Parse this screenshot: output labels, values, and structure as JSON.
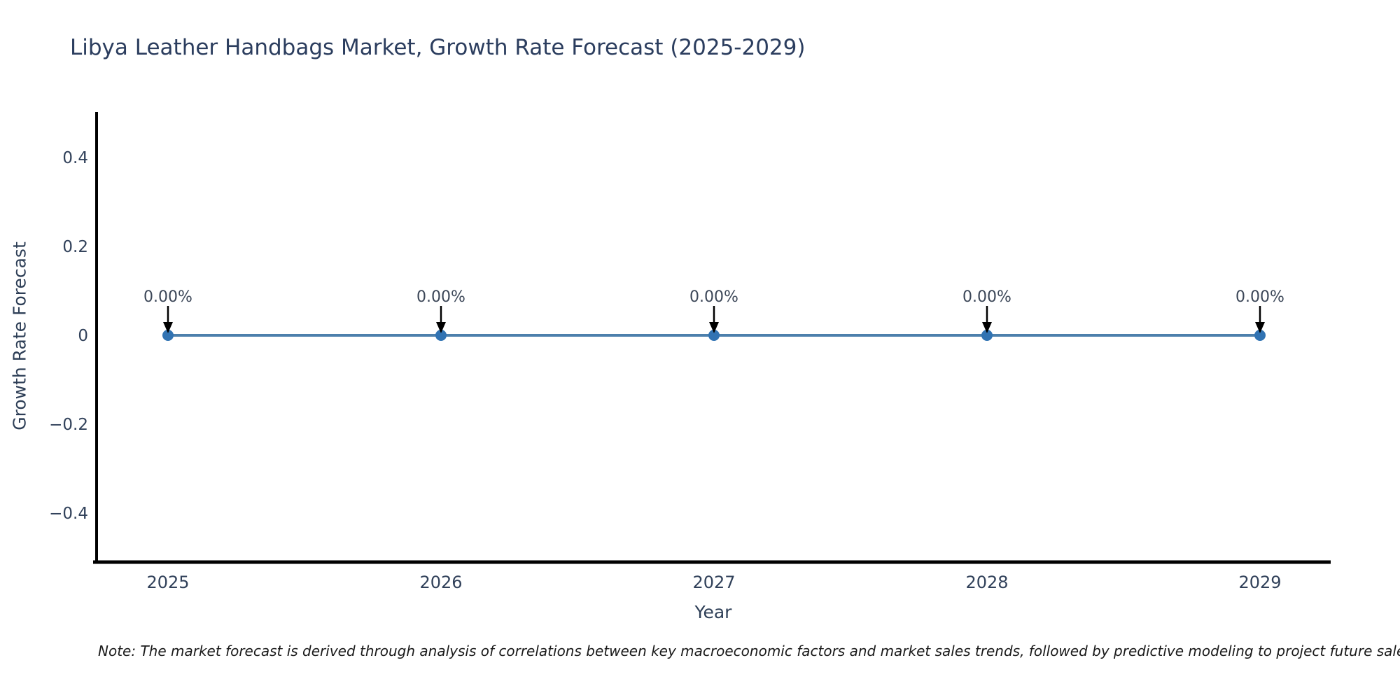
{
  "title": "Libya Leather Handbags Market, Growth Rate Forecast (2025-2029)",
  "note": "Note: The market forecast is derived through analysis of correlations between key macroeconomic factors and market sales trends, followed by predictive modeling to project future sales.",
  "colors": {
    "title_text": "#2b3d5e",
    "axis_text": "#2d3e56",
    "tick_text": "#31415a",
    "annotation_text": "#3c4758",
    "line": "#4d80ac",
    "marker": "#3173b3",
    "arrow": "#000000",
    "spine": "#000000",
    "background": "#ffffff"
  },
  "chart_data": {
    "type": "line",
    "title": "Libya Leather Handbags Market, Growth Rate Forecast (2025-2029)",
    "xlabel": "Year",
    "ylabel": "Growth Rate Forecast",
    "x": [
      2025,
      2026,
      2027,
      2028,
      2029
    ],
    "series": [
      {
        "name": "Growth Rate Forecast",
        "values": [
          0,
          0,
          0,
          0,
          0
        ]
      }
    ],
    "point_labels": [
      "0.00%",
      "0.00%",
      "0.00%",
      "0.00%",
      "0.00%"
    ],
    "yticks": [
      0.4,
      0.2,
      0,
      -0.2,
      -0.4
    ],
    "ytick_labels": [
      "0.4",
      "0.2",
      "0",
      "−0.2",
      "−0.4"
    ],
    "ylim": [
      -0.5,
      0.5
    ],
    "grid": false,
    "legend": false,
    "annotation_style": "down-arrow-to-point",
    "marker_shape": "circle"
  }
}
